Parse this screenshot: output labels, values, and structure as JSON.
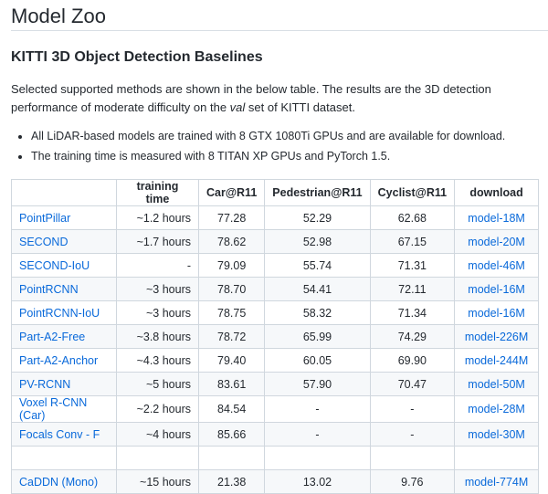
{
  "page_title": "Model Zoo",
  "section_title": "KITTI 3D Object Detection Baselines",
  "intro": {
    "before": "Selected supported methods are shown in the below table. The results are the 3D detection performance of moderate difficulty on the ",
    "emph": "val",
    "after": " set of KITTI dataset."
  },
  "notes": [
    "All LiDAR-based models are trained with 8 GTX 1080Ti GPUs and are available for download.",
    "The training time is measured with 8 TITAN XP GPUs and PyTorch 1.5."
  ],
  "table": {
    "headers": [
      "",
      "training time",
      "Car@R11",
      "Pedestrian@R11",
      "Cyclist@R11",
      "download"
    ],
    "rows": [
      {
        "method": "PointPillar",
        "time": "~1.2 hours",
        "car": "77.28",
        "ped": "52.29",
        "cyc": "62.68",
        "download": "model-18M"
      },
      {
        "method": "SECOND",
        "time": "~1.7 hours",
        "car": "78.62",
        "ped": "52.98",
        "cyc": "67.15",
        "download": "model-20M"
      },
      {
        "method": "SECOND-IoU",
        "time": "-",
        "car": "79.09",
        "ped": "55.74",
        "cyc": "71.31",
        "download": "model-46M"
      },
      {
        "method": "PointRCNN",
        "time": "~3 hours",
        "car": "78.70",
        "ped": "54.41",
        "cyc": "72.11",
        "download": "model-16M"
      },
      {
        "method": "PointRCNN-IoU",
        "time": "~3 hours",
        "car": "78.75",
        "ped": "58.32",
        "cyc": "71.34",
        "download": "model-16M"
      },
      {
        "method": "Part-A2-Free",
        "time": "~3.8 hours",
        "car": "78.72",
        "ped": "65.99",
        "cyc": "74.29",
        "download": "model-226M"
      },
      {
        "method": "Part-A2-Anchor",
        "time": "~4.3 hours",
        "car": "79.40",
        "ped": "60.05",
        "cyc": "69.90",
        "download": "model-244M"
      },
      {
        "method": "PV-RCNN",
        "time": "~5 hours",
        "car": "83.61",
        "ped": "57.90",
        "cyc": "70.47",
        "download": "model-50M"
      },
      {
        "method": "Voxel R-CNN (Car)",
        "time": "~2.2 hours",
        "car": "84.54",
        "ped": "-",
        "cyc": "-",
        "download": "model-28M"
      },
      {
        "method": "Focals Conv - F",
        "time": "~4 hours",
        "car": "85.66",
        "ped": "-",
        "cyc": "-",
        "download": "model-30M"
      },
      {
        "method": "",
        "time": "",
        "car": "",
        "ped": "",
        "cyc": "",
        "download": ""
      },
      {
        "method": "CaDDN (Mono)",
        "time": "~15 hours",
        "car": "21.38",
        "ped": "13.02",
        "cyc": "9.76",
        "download": "model-774M"
      }
    ]
  }
}
